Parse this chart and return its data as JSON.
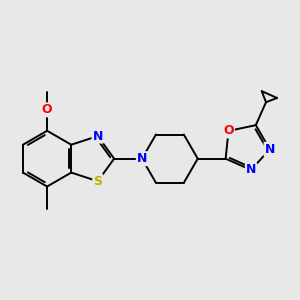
{
  "background_color": "#e8e8e8",
  "bond_color": "#000000",
  "figsize": [
    3.0,
    3.0
  ],
  "dpi": 100,
  "S_color": "#b8b800",
  "N_color": "#0000ff",
  "O_color": "#ff0000",
  "C_color": "#000000",
  "lw": 1.4,
  "atoms": {
    "S": {
      "color": "#b8b800"
    },
    "N": {
      "color": "#0000ff"
    },
    "O": {
      "color": "#ff0000"
    }
  }
}
